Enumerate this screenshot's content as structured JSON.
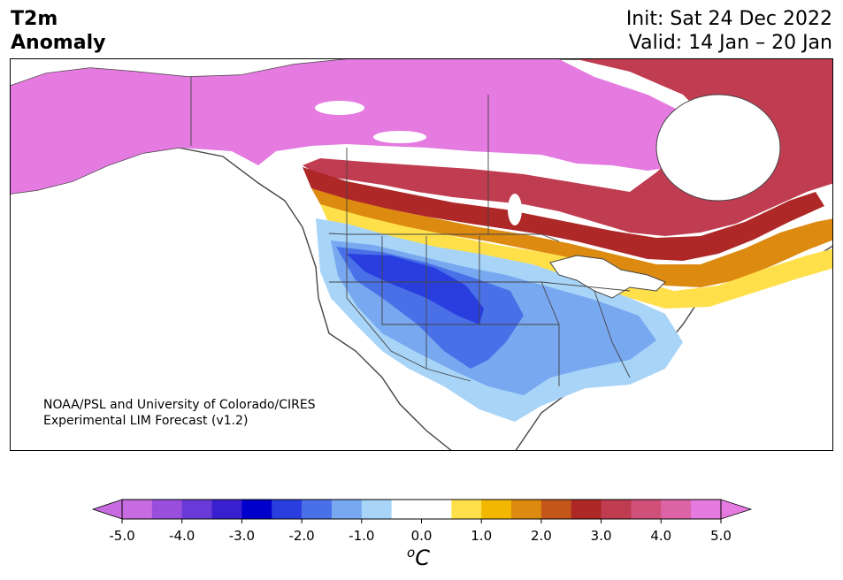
{
  "header": {
    "title_line1": "T2m",
    "title_line2": "Anomaly",
    "init": "Init: Sat 24 Dec 2022",
    "valid": "Valid: 14 Jan – 20 Jan"
  },
  "credit": {
    "line1": "NOAA/PSL and University of Colorado/CIRES",
    "line2": "Experimental LIM Forecast (v1.2)"
  },
  "colorbar": {
    "unit_sup": "o",
    "unit": "C",
    "ticks": [
      "-5.0",
      "-4.0",
      "-3.0",
      "-2.0",
      "-1.0",
      "0.0",
      "1.0",
      "2.0",
      "3.0",
      "4.0",
      "5.0"
    ],
    "min": -5.0,
    "max": 5.0,
    "under_color": "#c66be0",
    "over_color": "#e57ae0",
    "colors": [
      "#c66be0",
      "#9a4fdc",
      "#6a3ad8",
      "#3a1fd0",
      "#0000cc",
      "#2a3ee0",
      "#4a70e8",
      "#78a8f0",
      "#a8d4f8",
      "#ffffff",
      "#ffffff",
      "#ffe04a",
      "#f2b800",
      "#dc8a10",
      "#c4561a",
      "#ae2828",
      "#c03c50",
      "#d0507a",
      "#dc64a6",
      "#e57ae0"
    ]
  }
}
